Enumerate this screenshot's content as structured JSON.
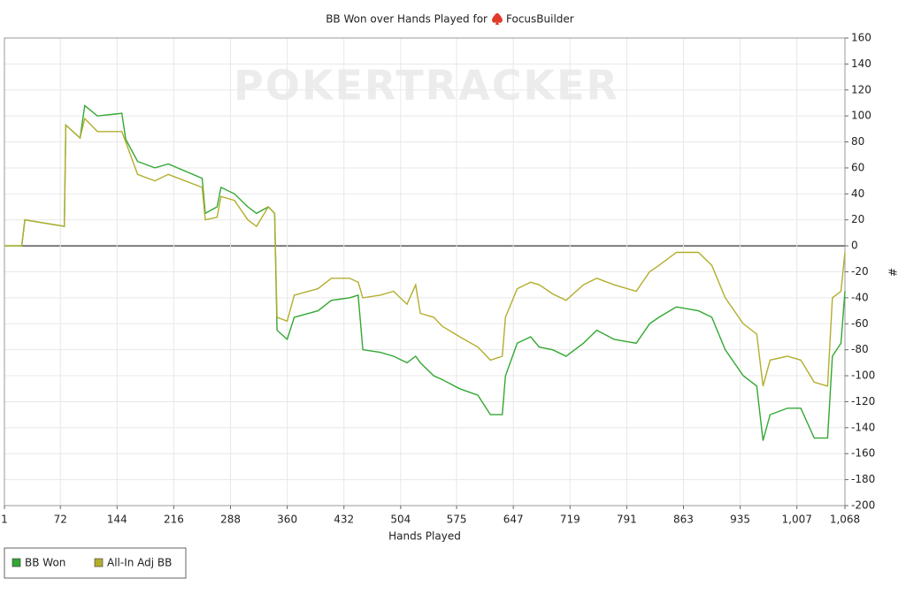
{
  "chart_data": {
    "type": "line",
    "title": "BB Won over Hands Played for",
    "player": "FocusBuilder",
    "watermark": "POKERTRACKER",
    "x_label": "Hands Played",
    "y_label": "#",
    "x": [
      1,
      23,
      27,
      77,
      79,
      97,
      103,
      119,
      150,
      155,
      170,
      192,
      209,
      252,
      256,
      271,
      276,
      293,
      310,
      321,
      336,
      344,
      347,
      360,
      369,
      399,
      416,
      439,
      450,
      456,
      478,
      495,
      512,
      523,
      529,
      546,
      557,
      579,
      602,
      618,
      633,
      637,
      652,
      669,
      680,
      697,
      714,
      736,
      753,
      775,
      803,
      820,
      832,
      854,
      882,
      899,
      916,
      939,
      956,
      964,
      973,
      995,
      1012,
      1029,
      1046,
      1052,
      1063,
      1068
    ],
    "series": [
      {
        "name": "BB Won",
        "color": "#33a833",
        "values": [
          0,
          0,
          20,
          15,
          93,
          83,
          108,
          100,
          102,
          82,
          65,
          60,
          63,
          52,
          25,
          30,
          45,
          40,
          30,
          25,
          30,
          25,
          -65,
          -72,
          -55,
          -50,
          -42,
          -40,
          -38,
          -80,
          -82,
          -85,
          -90,
          -85,
          -90,
          -100,
          -103,
          -110,
          -115,
          -130,
          -130,
          -100,
          -75,
          -70,
          -78,
          -80,
          -85,
          -75,
          -65,
          -72,
          -75,
          -60,
          -55,
          -47,
          -50,
          -55,
          -80,
          -100,
          -108,
          -150,
          -130,
          -125,
          -125,
          -148,
          -148,
          -85,
          -75,
          -35
        ]
      },
      {
        "name": "All-In Adj BB",
        "color": "#b3ae2e",
        "values": [
          0,
          0,
          20,
          15,
          93,
          83,
          98,
          88,
          88,
          80,
          55,
          50,
          55,
          45,
          20,
          22,
          38,
          35,
          20,
          15,
          30,
          25,
          -55,
          -58,
          -38,
          -33,
          -25,
          -25,
          -28,
          -40,
          -38,
          -35,
          -45,
          -30,
          -52,
          -55,
          -62,
          -70,
          -78,
          -88,
          -85,
          -55,
          -33,
          -28,
          -30,
          -37,
          -42,
          -30,
          -25,
          -30,
          -35,
          -20,
          -15,
          -5,
          -5,
          -15,
          -40,
          -60,
          -68,
          -108,
          -88,
          -85,
          -88,
          -105,
          -108,
          -40,
          -35,
          -5
        ]
      }
    ],
    "xlim": [
      1,
      1068
    ],
    "xticks": [
      1,
      72,
      144,
      216,
      288,
      360,
      432,
      504,
      575,
      647,
      719,
      791,
      863,
      935,
      {
        "value": 1007,
        "label": "1,007"
      },
      {
        "value": 1068,
        "label": "1,068"
      }
    ],
    "ylim": [
      -200,
      160
    ],
    "yticks": [
      -200,
      -180,
      -160,
      -140,
      -120,
      -100,
      -80,
      -60,
      -40,
      -20,
      0,
      20,
      40,
      60,
      80,
      100,
      120,
      140,
      160
    ],
    "grid": true,
    "legend": "bottom-left"
  }
}
